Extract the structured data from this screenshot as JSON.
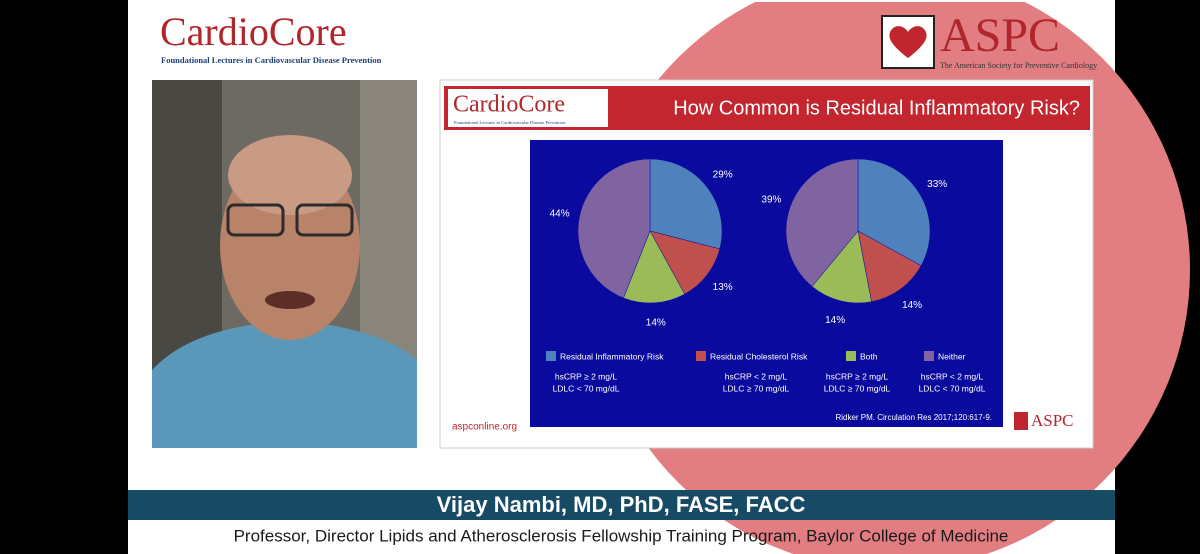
{
  "header": {
    "brand": "CardioCore",
    "brand_tagline": "Foundational Lectures in Cardiovascular Disease Prevention",
    "society": "ASPC",
    "society_tagline": "The American Society for Preventive Cardiology"
  },
  "slide": {
    "title": "How Common is Residual Inflammatory Risk?",
    "website": "aspconline.org",
    "citation": "Ridker PM. Circulation Res 2017;120:617-9."
  },
  "chart_data": {
    "type": "pie",
    "categories": [
      "Residual Inflammatory Risk",
      "Residual Cholesterol Risk",
      "Both",
      "Neither"
    ],
    "colors": [
      "#4f81bd",
      "#c0504d",
      "#9bbb59",
      "#8064a2"
    ],
    "notes": [
      [
        "hsCRP ≥ 2 mg/L",
        "LDLC < 70 mg/dL"
      ],
      [
        "hsCRP < 2 mg/L",
        "LDLC ≥ 70 mg/dL"
      ],
      [
        "hsCRP ≥ 2 mg/L",
        "LDLC ≥ 70 mg/dL"
      ],
      [
        "hsCRP < 2 mg/L",
        "LDLC < 70 mg/dL"
      ]
    ],
    "series": [
      {
        "values": [
          29,
          13,
          14,
          44
        ],
        "value_labels": [
          "29%",
          "13%",
          "14%",
          "44%"
        ]
      },
      {
        "values": [
          33,
          14,
          14,
          39
        ],
        "value_labels": [
          "33%",
          "14%",
          "14%",
          "39%"
        ]
      }
    ]
  },
  "footer": {
    "speaker": "Vijay Nambi, MD, PhD, FASE, FACC",
    "affiliation": "Professor, Director Lipids and Atherosclerosis Fellowship Training Program, Baylor College of Medicine"
  }
}
